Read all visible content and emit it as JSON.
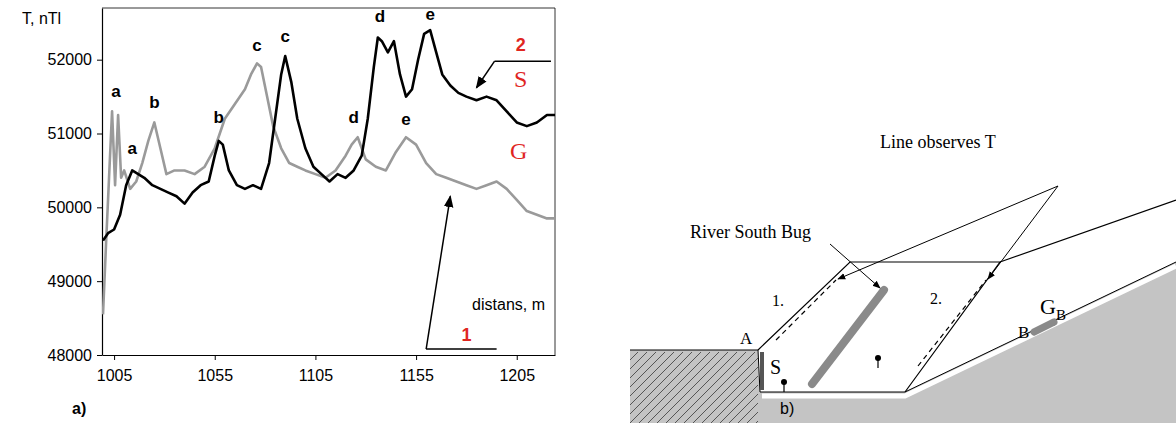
{
  "chart_data": {
    "type": "line",
    "panel_label": "a)",
    "y_label": "T, nTl",
    "x_label": "distans, m",
    "xlim": [
      999,
      1224
    ],
    "ylim": [
      48000,
      52700
    ],
    "xticks": [
      1005,
      1055,
      1105,
      1155,
      1205
    ],
    "yticks": [
      48000,
      49000,
      50000,
      51000,
      52000
    ],
    "grid": false,
    "series": [
      {
        "name": "G",
        "color": "#9a9a9a",
        "label_at": [
          1206,
          50730
        ],
        "x": [
          999.5,
          1001,
          1002.5,
          1004,
          1005.5,
          1007,
          1008.5,
          1010,
          1013,
          1016,
          1019,
          1022,
          1025,
          1028,
          1031,
          1035,
          1040,
          1045,
          1050,
          1055,
          1060,
          1065,
          1070,
          1073,
          1076,
          1078,
          1081,
          1084,
          1088,
          1092,
          1096,
          1100,
          1105,
          1110,
          1115,
          1120,
          1123,
          1126,
          1130,
          1135,
          1140,
          1145,
          1150,
          1155,
          1160,
          1165,
          1170,
          1175,
          1180,
          1185,
          1190,
          1195,
          1200,
          1205,
          1210,
          1215,
          1220,
          1224
        ],
        "values": [
          48550,
          49500,
          50400,
          51300,
          50300,
          51250,
          50400,
          50500,
          50250,
          50350,
          50600,
          50900,
          51150,
          50800,
          50450,
          50500,
          50500,
          50450,
          50550,
          50800,
          51200,
          51400,
          51600,
          51800,
          51950,
          51900,
          51500,
          51100,
          50800,
          50600,
          50550,
          50500,
          50450,
          50400,
          50500,
          50700,
          50850,
          50950,
          50650,
          50550,
          50500,
          50750,
          50950,
          50850,
          50600,
          50450,
          50400,
          50350,
          50300,
          50250,
          50300,
          50350,
          50250,
          50100,
          49950,
          49900,
          49850,
          49850
        ]
      },
      {
        "name": "S",
        "color": "#000000",
        "label_at": [
          1207,
          51700
        ],
        "x": [
          999.5,
          1002,
          1005,
          1008,
          1011,
          1014,
          1017,
          1020,
          1024,
          1028,
          1032,
          1036,
          1040,
          1044,
          1048,
          1052,
          1055,
          1057,
          1059,
          1062,
          1066,
          1070,
          1074,
          1078,
          1082,
          1085,
          1088,
          1090,
          1093,
          1096,
          1100,
          1104,
          1108,
          1112,
          1116,
          1120,
          1124,
          1128,
          1131,
          1134,
          1136,
          1138,
          1141,
          1144,
          1147,
          1150,
          1153,
          1156,
          1159,
          1162,
          1165,
          1168,
          1172,
          1176,
          1180,
          1185,
          1190,
          1195,
          1200,
          1205,
          1210,
          1215,
          1220,
          1224
        ],
        "values": [
          49550,
          49650,
          49700,
          49900,
          50300,
          50500,
          50450,
          50400,
          50300,
          50250,
          50200,
          50150,
          50050,
          50200,
          50300,
          50350,
          50700,
          50900,
          50850,
          50500,
          50300,
          50250,
          50300,
          50250,
          50600,
          51200,
          51800,
          52050,
          51700,
          51200,
          50800,
          50550,
          50450,
          50350,
          50450,
          50400,
          50500,
          50700,
          51200,
          51900,
          52300,
          52250,
          52100,
          52250,
          51800,
          51500,
          51600,
          52000,
          52350,
          52400,
          52100,
          51800,
          51650,
          51550,
          51500,
          51450,
          51500,
          51450,
          51300,
          51150,
          51100,
          51150,
          51250,
          51250
        ]
      }
    ],
    "annotations": [
      {
        "text": "a",
        "x": 1006,
        "y": 51550
      },
      {
        "text": "a",
        "x": 1014,
        "y": 50780
      },
      {
        "text": "b",
        "x": 1025,
        "y": 51400
      },
      {
        "text": "b",
        "x": 1057,
        "y": 51200
      },
      {
        "text": "c",
        "x": 1076,
        "y": 52180
      },
      {
        "text": "c",
        "x": 1090,
        "y": 52300
      },
      {
        "text": "d",
        "x": 1124,
        "y": 51200
      },
      {
        "text": "d",
        "x": 1137,
        "y": 52570
      },
      {
        "text": "e",
        "x": 1150,
        "y": 51180
      },
      {
        "text": "e",
        "x": 1162,
        "y": 52600
      }
    ],
    "callouts": [
      {
        "text": "1",
        "x": 1180,
        "y": 48260,
        "line_from": 1160,
        "line_to": 1195,
        "line_y": 48080,
        "tip_x": 1172,
        "tip_y": 50150
      },
      {
        "text": "2",
        "x": 1207,
        "y": 52180,
        "line_from": 1194,
        "line_to": 1222,
        "line_y": 51980,
        "tip_x": 1185,
        "tip_y": 51620
      }
    ]
  },
  "diagram": {
    "panel_label": "b)",
    "river": "River South Bug",
    "observation_lines": "Line observes T",
    "line_1": "1.",
    "line_2": "2.",
    "point_a": "A",
    "point_s": "S",
    "point_b": "B",
    "anomaly": {
      "text": "G",
      "subscript": "B"
    }
  }
}
